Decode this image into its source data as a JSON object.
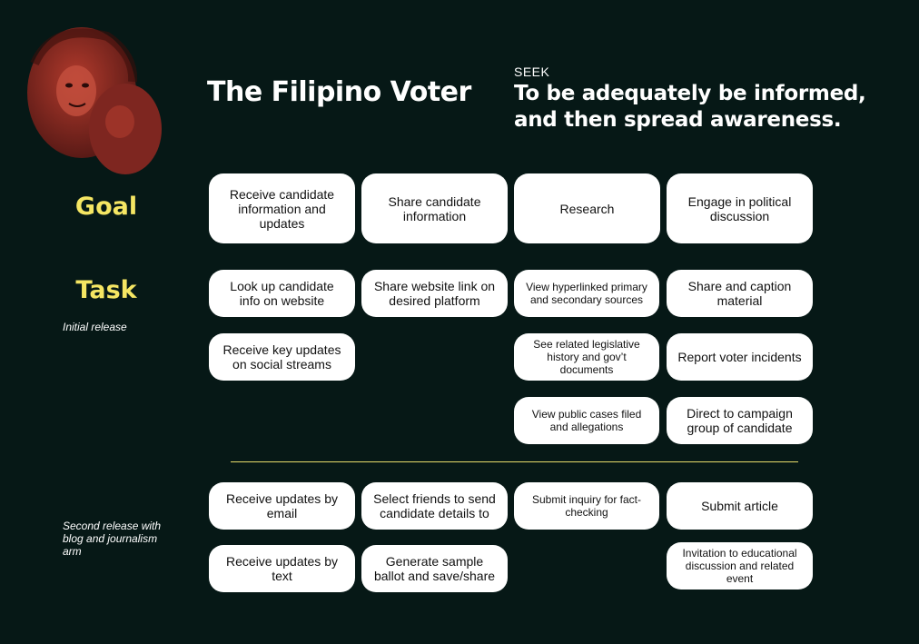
{
  "persona": {
    "title": "The Filipino Voter",
    "seek_label": "SEEK",
    "seek_text": "To be adequately be informed, and then spread awareness.",
    "photo_icon": "portrait-photo"
  },
  "rows": {
    "goal_label": "Goal",
    "task_label": "Task",
    "initial_release_note": "Initial release",
    "second_release_note": "Second release with blog and journalism arm"
  },
  "colors": {
    "background": "#061816",
    "accent": "#f5e663",
    "card": "#ffffff",
    "photo_tint": "#8a2a22"
  },
  "goals": [
    "Receive candidate information and updates",
    "Share candidate information",
    "Research",
    "Engage in political discussion"
  ],
  "tasks_initial": [
    "Look up candidate info on website",
    "Share website link on desired platform",
    "View hyperlinked primary and secondary sources",
    "Share and caption material",
    "Receive key updates on social streams",
    "See related legislative history and gov’t documents",
    "Report voter incidents",
    "View public cases filed and allegations",
    "Direct to campaign group of candidate"
  ],
  "tasks_second": [
    "Receive updates by email",
    "Select friends to send candidate details to",
    "Submit inquiry for fact-checking",
    "Submit article",
    "Receive updates by text",
    "Generate sample ballot and save/share",
    "Invitation to educational discussion and related event"
  ]
}
